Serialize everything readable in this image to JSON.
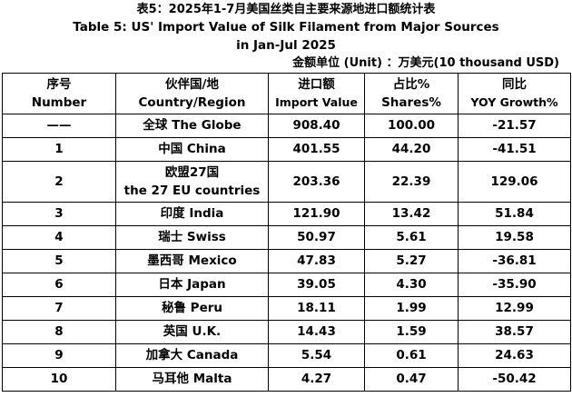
{
  "title_cn": "表5：2025年1-7月美国丝类自主要来源地进口额统计表",
  "title_en_line1": "Table 5: US' Import Value of Silk Filament from Major Sources",
  "title_en_line2": "in Jan-Jul 2025",
  "unit_note": "金额单位 (Unit) ：万美元(10 thousand USD)",
  "headers": [
    {
      "cn": "序号",
      "en": "Number"
    },
    {
      "cn": "伙伴国/地",
      "en": "Country/Region"
    },
    {
      "cn": "进口额",
      "en": "Import Value"
    },
    {
      "cn": "占比%",
      "en": "Shares%"
    },
    {
      "cn": "同比",
      "en": "YOY Growth%"
    }
  ],
  "rows": [
    {
      "num": "——",
      "country": "全球 The Globe",
      "value": "908.40",
      "share": "100.00",
      "yoy": "-21.57"
    },
    {
      "num": "1",
      "country": "中国 China",
      "value": "401.55",
      "share": "44.20",
      "yoy": "-41.51"
    },
    {
      "num": "2",
      "country_line1": "欧盟27国",
      "country_line2": "the 27 EU countries",
      "value": "203.36",
      "share": "22.39",
      "yoy": "129.06"
    },
    {
      "num": "3",
      "country": "印度 India",
      "value": "121.90",
      "share": "13.42",
      "yoy": "51.84"
    },
    {
      "num": "4",
      "country": "瑞士 Swiss",
      "value": "50.97",
      "share": "5.61",
      "yoy": "19.58"
    },
    {
      "num": "5",
      "country": "墨西哥 Mexico",
      "value": "47.83",
      "share": "5.27",
      "yoy": "-36.81"
    },
    {
      "num": "6",
      "country": "日本 Japan",
      "value": "39.05",
      "share": "4.30",
      "yoy": "-35.90"
    },
    {
      "num": "7",
      "country": "秘鲁 Peru",
      "value": "18.11",
      "share": "1.99",
      "yoy": "12.99"
    },
    {
      "num": "8",
      "country": "英国 U.K.",
      "value": "14.43",
      "share": "1.59",
      "yoy": "38.57"
    },
    {
      "num": "9",
      "country": "加拿大 Canada",
      "value": "5.54",
      "share": "0.61",
      "yoy": "24.63"
    },
    {
      "num": "10",
      "country": "马耳他 Malta",
      "value": "4.27",
      "share": "0.47",
      "yoy": "-50.42"
    }
  ]
}
